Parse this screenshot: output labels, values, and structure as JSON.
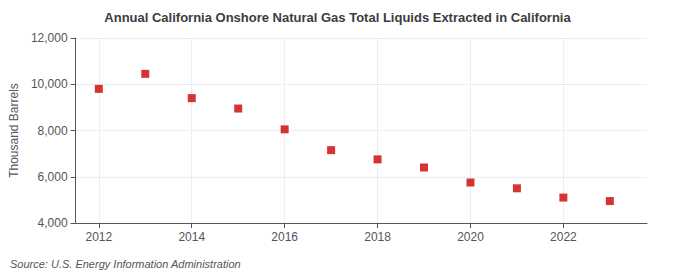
{
  "chart_data": {
    "type": "scatter",
    "title": "Annual California Onshore Natural Gas Total Liquids Extracted in California",
    "ylabel": "Thousand Barrels",
    "source": "Source: U.S. Energy Information Administration",
    "x": [
      2012,
      2013,
      2014,
      2015,
      2016,
      2017,
      2018,
      2019,
      2020,
      2021,
      2022,
      2023
    ],
    "values": [
      9800,
      10450,
      9400,
      8950,
      8050,
      7150,
      6750,
      6400,
      5750,
      5500,
      5100,
      4950
    ],
    "color": "#cc0000",
    "marker": "square",
    "xlim": [
      2011.5,
      2023.8
    ],
    "xticks": [
      2012,
      2014,
      2016,
      2018,
      2020,
      2022
    ],
    "ylim": [
      4000,
      12000
    ],
    "yticks": [
      {
        "value": 4000,
        "label": "4,000"
      },
      {
        "value": 6000,
        "label": "6,000"
      },
      {
        "value": 8000,
        "label": "8,000"
      },
      {
        "value": 10000,
        "label": "10,000"
      },
      {
        "value": 12000,
        "label": "12,000"
      }
    ],
    "grid": true
  }
}
